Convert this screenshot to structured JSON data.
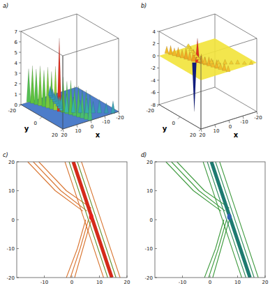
{
  "chart_data": [
    {
      "type": "surface",
      "label": "a)",
      "x_label": "x",
      "y_label": "y",
      "color": "#3a6fc4",
      "plane": 0,
      "xlim": [
        -20,
        20
      ],
      "ylim": [
        -20,
        20
      ],
      "zlim": [
        0,
        7
      ],
      "xticks": [
        -20,
        -10,
        0,
        10,
        20
      ],
      "yticks": [
        -20,
        0,
        20
      ],
      "zticks": [
        0,
        1,
        2,
        3,
        4,
        5,
        6,
        7
      ],
      "series": [
        {
          "x": [
            14.5,
            13.6,
            12.8,
            11.9,
            11,
            10.1,
            9.3,
            8.4,
            7.5,
            6.6,
            5.8,
            4.9,
            4,
            3.1,
            2.3,
            1.4,
            0.5
          ],
          "y": [
            -20,
            -17.5,
            -15,
            -12.5,
            -10,
            -7.5,
            -5,
            -2.5,
            0,
            2.5,
            5,
            7.5,
            10,
            12.5,
            15,
            17.5,
            20
          ],
          "values": [
            3.2,
            3.6,
            3.4,
            3.8,
            3.5,
            3.9,
            3.6,
            4.2,
            7,
            3.4,
            3.1,
            3.3,
            2.9,
            3,
            2.7,
            2.8,
            2.5
          ]
        },
        {
          "x": [
            -16,
            -13,
            -10,
            -7,
            -4,
            -1,
            2,
            5
          ],
          "y": [
            20,
            17.5,
            15,
            13,
            11,
            8.5,
            6,
            3.5
          ],
          "values": [
            1.2,
            1,
            1.3,
            1.1,
            1.4,
            1.2,
            1.5,
            1.8
          ]
        },
        {
          "x": [
            6,
            5,
            4,
            3,
            2,
            1,
            0,
            -1
          ],
          "y": [
            0,
            -3,
            -6,
            -9,
            -12,
            -15,
            -18,
            -20
          ],
          "values": [
            1.5,
            1.2,
            1,
            1.1,
            0.9,
            1,
            0.8,
            0.9
          ]
        }
      ]
    },
    {
      "type": "surface",
      "label": "b)",
      "x_label": "x",
      "y_label": "y",
      "color": "#f2e33a",
      "plane": 0,
      "xlim": [
        -20,
        20
      ],
      "ylim": [
        -20,
        20
      ],
      "zlim": [
        -8,
        4
      ],
      "xticks": [
        -20,
        -10,
        0,
        10,
        20
      ],
      "yticks": [
        -20,
        0,
        20
      ],
      "zticks": [
        -8,
        -6,
        -4,
        -2,
        0,
        2,
        4
      ],
      "series": [
        {
          "x": [
            9
          ],
          "y": [
            -1
          ],
          "values": [
            -8
          ]
        },
        {
          "x": [
            14.5,
            13.6,
            12.8,
            11.9,
            11,
            10.1,
            9.3,
            8.4,
            7.5,
            6.6,
            5.8,
            4.9,
            4,
            3.1,
            2.3,
            1.4,
            0.5
          ],
          "y": [
            -20,
            -17.5,
            -15,
            -12.5,
            -10,
            -7.5,
            -5,
            -2.5,
            0,
            2.5,
            5,
            7.5,
            10,
            12.5,
            15,
            17.5,
            20
          ],
          "values": [
            1.2,
            1.5,
            1.3,
            1.6,
            1.4,
            1.8,
            1.5,
            2,
            4,
            1.6,
            1.3,
            1.5,
            1.2,
            1.4,
            1.1,
            1.3,
            1
          ]
        },
        {
          "x": [
            -16,
            -13,
            -10,
            -7,
            -4,
            -1,
            2,
            5
          ],
          "y": [
            20,
            17.5,
            15,
            13,
            11,
            8.5,
            6,
            3.5
          ],
          "values": [
            0.6,
            0.5,
            0.7,
            0.6,
            0.8,
            0.7,
            0.9,
            1.1
          ]
        },
        {
          "x": [
            6,
            5,
            4,
            3,
            2,
            1,
            0,
            -1
          ],
          "y": [
            0,
            -3,
            -6,
            -9,
            -12,
            -15,
            -18,
            -20
          ],
          "values": [
            0.8,
            0.7,
            0.6,
            0.7,
            0.5,
            0.6,
            0.5,
            0.5
          ]
        }
      ]
    },
    {
      "type": "contour",
      "label": "c)",
      "xlim": [
        -20,
        20
      ],
      "ylim": [
        -20,
        20
      ],
      "xticks": [
        -10,
        0,
        10,
        20
      ],
      "yticks": [
        -20,
        -10,
        0,
        10,
        20
      ],
      "series": [
        {
          "x": [
            -16,
            -6,
            4
          ],
          "values": [
            20,
            10,
            3
          ],
          "color": "#d9732e",
          "line_style": "solid"
        },
        {
          "x": [
            -14,
            -4,
            5.5
          ],
          "values": [
            20,
            10,
            3
          ],
          "color": "#d9732e",
          "line_style": "solid"
        },
        {
          "x": [
            -12,
            -2,
            7
          ],
          "values": [
            20,
            10,
            4
          ],
          "color": "#d9732e",
          "line_style": "solid"
        },
        {
          "x": [
            5,
            2,
            -2
          ],
          "values": [
            0,
            -10,
            -20
          ],
          "color": "#d9732e",
          "line_style": "solid"
        },
        {
          "x": [
            6,
            3,
            -0.5
          ],
          "values": [
            0,
            -10,
            -20
          ],
          "color": "#d9732e",
          "line_style": "solid"
        },
        {
          "x": [
            7,
            4,
            1
          ],
          "values": [
            0,
            -10,
            -20
          ],
          "color": "#d9732e",
          "line_style": "solid"
        },
        {
          "x": [
            -2.5,
            3.8,
            11.5
          ],
          "values": [
            20,
            2,
            -20
          ],
          "color": "#d9732e",
          "line_style": "solid"
        },
        {
          "x": [
            3.5,
            9.8,
            17.5
          ],
          "values": [
            20,
            2,
            -20
          ],
          "color": "#d9732e",
          "line_style": "solid"
        },
        {
          "x": [
            -1,
            5.3,
            13
          ],
          "values": [
            20,
            2,
            -20
          ],
          "color": "#5f8f2a",
          "line_style": "solid"
        },
        {
          "x": [
            2,
            8.3,
            16
          ],
          "values": [
            20,
            2,
            -20
          ],
          "color": "#5f8f2a",
          "line_style": "solid"
        },
        {
          "x": [
            0.5,
            6.8,
            14.5
          ],
          "values": [
            20,
            2,
            -20
          ],
          "color": "#d42a1a",
          "line_style": "bold"
        },
        {
          "type": "scatter",
          "marker": "ellipse",
          "x": [
            7
          ],
          "values": [
            1
          ],
          "color": "#e8201a"
        }
      ]
    },
    {
      "type": "contour",
      "label": "d)",
      "xlim": [
        -20,
        20
      ],
      "ylim": [
        -20,
        20
      ],
      "xticks": [
        -10,
        0,
        10,
        20
      ],
      "yticks": [
        -20,
        -10,
        0,
        10,
        20
      ],
      "series": [
        {
          "x": [
            -16,
            -6,
            4
          ],
          "values": [
            20,
            10,
            3
          ],
          "color": "#3d9a3d",
          "line_style": "solid"
        },
        {
          "x": [
            -14,
            -4,
            5.5
          ],
          "values": [
            20,
            10,
            3
          ],
          "color": "#3d9a3d",
          "line_style": "solid"
        },
        {
          "x": [
            -12,
            -2,
            7
          ],
          "values": [
            20,
            10,
            4
          ],
          "color": "#3d9a3d",
          "line_style": "solid"
        },
        {
          "x": [
            5,
            2,
            -2
          ],
          "values": [
            0,
            -10,
            -20
          ],
          "color": "#3d9a3d",
          "line_style": "solid"
        },
        {
          "x": [
            6,
            3,
            -0.5
          ],
          "values": [
            0,
            -10,
            -20
          ],
          "color": "#3d9a3d",
          "line_style": "solid"
        },
        {
          "x": [
            7,
            4,
            1
          ],
          "values": [
            0,
            -10,
            -20
          ],
          "color": "#3d9a3d",
          "line_style": "solid"
        },
        {
          "x": [
            -2.5,
            3.8,
            11.5
          ],
          "values": [
            20,
            2,
            -20
          ],
          "color": "#3d9a3d",
          "line_style": "solid"
        },
        {
          "x": [
            3.5,
            9.8,
            17.5
          ],
          "values": [
            20,
            2,
            -20
          ],
          "color": "#3d9a3d",
          "line_style": "solid"
        },
        {
          "x": [
            -1,
            5.3,
            13
          ],
          "values": [
            20,
            2,
            -20
          ],
          "color": "#2a8a55",
          "line_style": "solid"
        },
        {
          "x": [
            2,
            8.3,
            16
          ],
          "values": [
            20,
            2,
            -20
          ],
          "color": "#2a8a55",
          "line_style": "solid"
        },
        {
          "x": [
            0.5,
            6.8,
            14.5
          ],
          "values": [
            20,
            2,
            -20
          ],
          "color": "#1d7a70",
          "line_style": "bold"
        },
        {
          "type": "scatter",
          "marker": "ellipse",
          "x": [
            7
          ],
          "values": [
            1
          ],
          "color": "#2f63b0"
        }
      ]
    }
  ]
}
